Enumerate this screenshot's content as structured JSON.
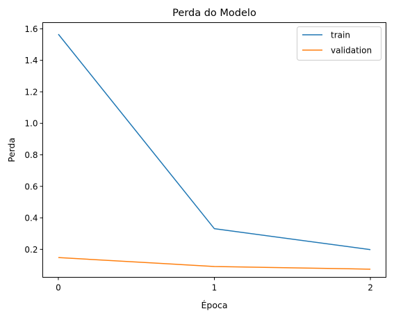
{
  "chart_data": {
    "type": "line",
    "title": "Perda do Modelo",
    "xlabel": "Época",
    "ylabel": "Perda",
    "x": [
      0,
      1,
      2
    ],
    "xticks": [
      0,
      1,
      2
    ],
    "yticks": [
      0.2,
      0.4,
      0.6,
      0.8,
      1.0,
      1.2,
      1.4,
      1.6
    ],
    "ytick_labels": [
      "0.2",
      "0.4",
      "0.6",
      "0.8",
      "1.0",
      "1.2",
      "1.4",
      "1.6"
    ],
    "xlim": [
      -0.1,
      2.1
    ],
    "ylim": [
      0.0225,
      1.6395
    ],
    "grid": false,
    "legend_position": "top-right",
    "series": [
      {
        "name": "train",
        "color": "#1f77b4",
        "values": [
          1.566,
          0.331,
          0.198
        ]
      },
      {
        "name": "validation",
        "color": "#ff7f0e",
        "values": [
          0.148,
          0.091,
          0.074
        ]
      }
    ]
  }
}
